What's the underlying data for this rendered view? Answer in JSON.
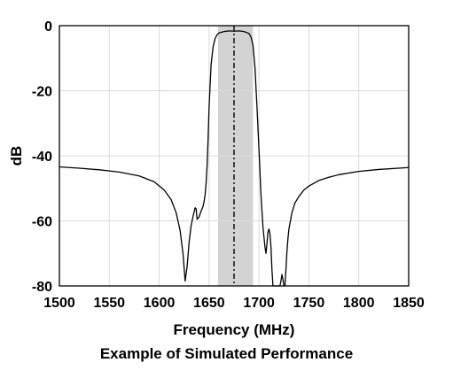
{
  "caption": "Example of Simulated Performance",
  "chart_data": {
    "type": "line",
    "xlabel": "Frequency (MHz)",
    "ylabel": "dB",
    "xlim": [
      1500,
      1850
    ],
    "ylim": [
      -80,
      0
    ],
    "grid": true,
    "x_ticks": [
      1500,
      1550,
      1600,
      1650,
      1700,
      1750,
      1800,
      1850
    ],
    "y_ticks": [
      0,
      -20,
      -40,
      -60,
      -80
    ],
    "x_tick_labels": [
      "1500",
      "1550",
      "1600",
      "1650",
      "1700",
      "1750",
      "1800",
      "1850"
    ],
    "y_tick_labels": [
      "0",
      "-20",
      "-40",
      "-60",
      "-80"
    ],
    "shaded_band": {
      "x_start": 1659,
      "x_end": 1694,
      "color": "#d3d3d3"
    },
    "center_line": {
      "x": 1675,
      "style": "dash-dot",
      "color": "#000000"
    },
    "series": [
      {
        "color": "#000000",
        "x": [
          1500,
          1520,
          1540,
          1560,
          1580,
          1595,
          1605,
          1612,
          1617,
          1621,
          1624,
          1626,
          1628,
          1630,
          1632,
          1634,
          1636,
          1637,
          1638,
          1640,
          1642,
          1644,
          1645,
          1646,
          1647,
          1648,
          1649,
          1650,
          1652,
          1654,
          1656,
          1658,
          1660,
          1665,
          1670,
          1675,
          1680,
          1685,
          1690,
          1692,
          1694,
          1696,
          1698,
          1700,
          1702,
          1704,
          1706,
          1707,
          1708,
          1709,
          1710,
          1711,
          1712,
          1713,
          1714,
          1715,
          1716,
          1717,
          1718,
          1719,
          1720,
          1721,
          1722,
          1723,
          1724,
          1725,
          1726,
          1727,
          1728,
          1729,
          1730,
          1733,
          1736,
          1740,
          1745,
          1750,
          1760,
          1770,
          1780,
          1800,
          1820,
          1850
        ],
        "y": [
          -43.4,
          -43.8,
          -44.3,
          -45.0,
          -46.2,
          -48.0,
          -50.5,
          -53.5,
          -57.5,
          -63.0,
          -70.5,
          -78.5,
          -74.0,
          -66.5,
          -61.5,
          -58.5,
          -56.0,
          -56.3,
          -59.5,
          -58.8,
          -57.0,
          -55.5,
          -54.0,
          -52.0,
          -48.5,
          -43.0,
          -35.0,
          -25.0,
          -12.0,
          -6.5,
          -4.0,
          -2.8,
          -2.2,
          -1.8,
          -1.6,
          -1.7,
          -1.6,
          -1.8,
          -2.4,
          -3.5,
          -6.0,
          -13.0,
          -25.0,
          -38.0,
          -52.0,
          -62.0,
          -68.0,
          -70.0,
          -67.0,
          -63.5,
          -62.5,
          -64.0,
          -68.0,
          -75.0,
          -80.0,
          -80.0,
          -80.0,
          -80.0,
          -80.0,
          -80.0,
          -80.0,
          -80.0,
          -78.5,
          -76.5,
          -78.0,
          -80.0,
          -80.0,
          -75.0,
          -69.5,
          -65.5,
          -62.5,
          -57.5,
          -54.5,
          -52.5,
          -50.5,
          -49.3,
          -47.6,
          -46.6,
          -45.8,
          -44.8,
          -44.2,
          -43.6
        ]
      }
    ]
  }
}
